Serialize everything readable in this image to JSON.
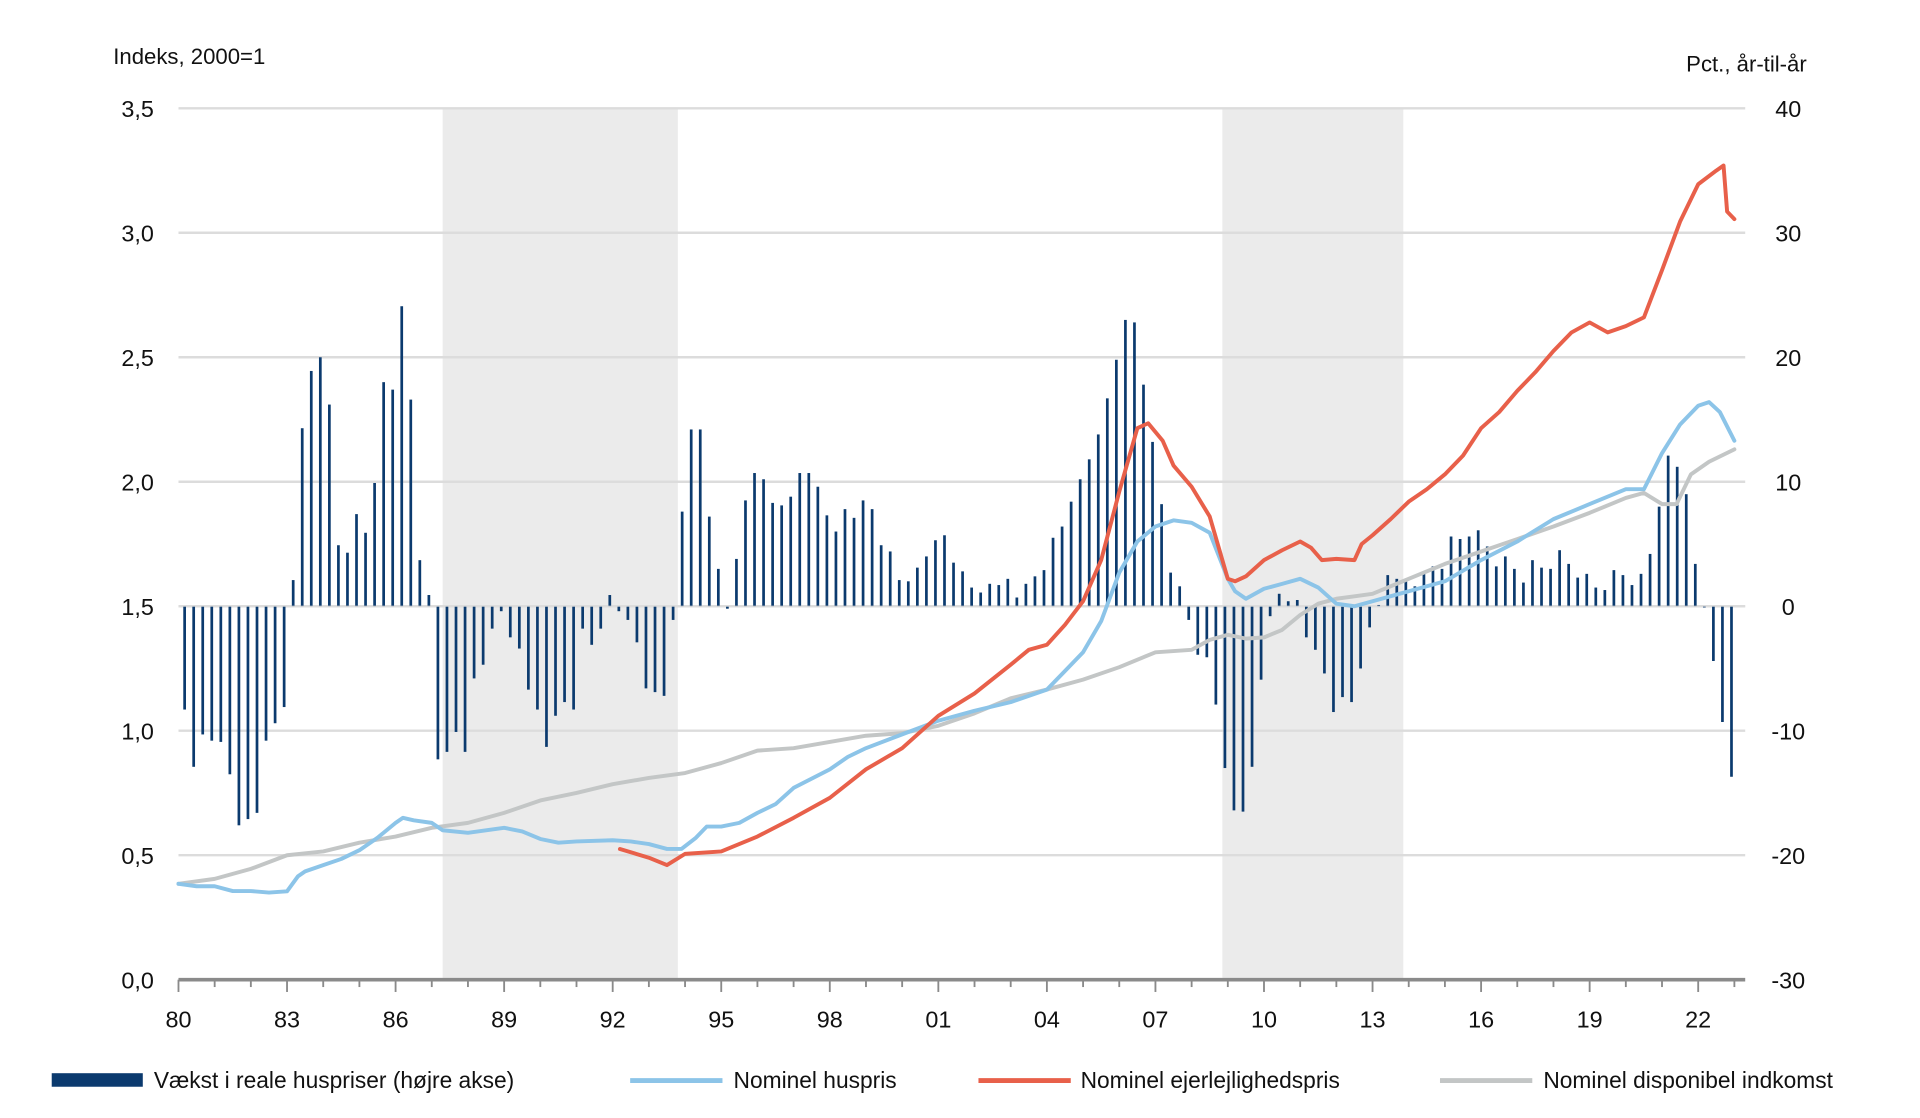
{
  "chart_data": {
    "type": "bar+line",
    "left_axis": {
      "label": "Indeks, 2000=1",
      "ylim": [
        0,
        3.5
      ],
      "ticks": [
        "0,0",
        "0,5",
        "1,0",
        "1,5",
        "2,0",
        "2,5",
        "3,0",
        "3,5"
      ],
      "tick_values": [
        0,
        0.5,
        1,
        1.5,
        2,
        2.5,
        3,
        3.5
      ]
    },
    "right_axis": {
      "label": "Pct., år-til-år",
      "ylim": [
        -30,
        40
      ],
      "ticks": [
        "-30",
        "-20",
        "-10",
        "0",
        "10",
        "20",
        "30",
        "40"
      ],
      "tick_values": [
        -30,
        -20,
        -10,
        0,
        10,
        20,
        30,
        40
      ]
    },
    "x_axis": {
      "xlim": [
        1980,
        2023.3
      ],
      "tick_labels": [
        "80",
        "83",
        "86",
        "89",
        "92",
        "95",
        "98",
        "01",
        "04",
        "07",
        "10",
        "13",
        "16",
        "19",
        "22"
      ],
      "tick_years": [
        1980,
        1983,
        1986,
        1989,
        1992,
        1995,
        1998,
        2001,
        2004,
        2007,
        2010,
        2013,
        2016,
        2019,
        2022
      ]
    },
    "shaded_periods": [
      [
        1987.3,
        1993.8
      ],
      [
        2008.85,
        2013.85
      ]
    ],
    "grid": true,
    "legend": {
      "placement": "bottom",
      "entries": [
        "Vækst i reale huspriser (højre akse)",
        "Nominel huspris",
        "Nominel ejerlejlighedspris",
        "Nominel disponibel indkomst"
      ]
    },
    "bars": {
      "name": "Vækst i reale huspriser (højre akse)",
      "axis": "right",
      "start": "1980Q1",
      "frequency": "quarterly",
      "color": "#0b3a6e",
      "values": [
        -8.3,
        -12.9,
        -10.3,
        -10.8,
        -10.9,
        -13.5,
        -17.6,
        -17.1,
        -16.6,
        -10.8,
        -9.4,
        -8.1,
        2.1,
        14.3,
        18.9,
        20.0,
        16.2,
        4.9,
        4.3,
        7.4,
        5.9,
        9.9,
        18.0,
        17.4,
        24.1,
        16.6,
        3.7,
        0.9,
        -12.3,
        -11.7,
        -10.1,
        -11.7,
        -5.8,
        -4.7,
        -1.8,
        -0.4,
        -2.5,
        -3.4,
        -6.7,
        -8.3,
        -11.3,
        -8.8,
        -7.7,
        -8.3,
        -1.8,
        -3.1,
        -1.8,
        0.9,
        -0.4,
        -1.1,
        -2.9,
        -6.6,
        -6.9,
        -7.2,
        -1.1,
        7.6,
        14.2,
        14.2,
        7.2,
        3.0,
        -0.2,
        3.8,
        8.5,
        10.7,
        10.2,
        8.3,
        8.1,
        8.8,
        10.7,
        10.7,
        9.6,
        7.3,
        6.0,
        7.8,
        7.1,
        8.5,
        7.8,
        4.9,
        4.4,
        2.1,
        2.0,
        3.1,
        4.0,
        5.3,
        5.7,
        3.5,
        2.8,
        1.5,
        1.1,
        1.8,
        1.7,
        2.2,
        0.7,
        1.8,
        2.4,
        2.9,
        5.5,
        6.4,
        8.4,
        10.2,
        11.8,
        13.8,
        16.7,
        19.8,
        23.0,
        22.8,
        17.8,
        13.2,
        8.2,
        2.7,
        1.6,
        -1.1,
        -3.9,
        -4.1,
        -7.9,
        -13.0,
        -16.4,
        -16.5,
        -12.9,
        -5.9,
        -0.8,
        1.0,
        0.4,
        0.5,
        -2.5,
        -3.5,
        -5.4,
        -8.5,
        -7.3,
        -7.7,
        -5.0,
        -1.7,
        0.1,
        2.5,
        2.2,
        2.1,
        1.6,
        2.7,
        3.2,
        3.0,
        5.6,
        5.4,
        5.6,
        6.1,
        4.8,
        3.2,
        4.0,
        3.0,
        1.9,
        3.7,
        3.1,
        3.0,
        4.5,
        3.4,
        2.3,
        2.6,
        1.5,
        1.3,
        2.9,
        2.5,
        1.7,
        2.6,
        4.2,
        8.0,
        12.1,
        11.2,
        9.0,
        3.4,
        -0.1,
        -4.4,
        -9.3,
        -13.7
      ]
    },
    "series": [
      {
        "name": "Nominel huspris",
        "axis": "left",
        "color": "#8cc4e8",
        "x": [
          1980,
          1980.5,
          1981,
          1981.5,
          1982,
          1982.5,
          1983,
          1983.3,
          1983.5,
          1984,
          1984.5,
          1985,
          1985.5,
          1986,
          1986.2,
          1986.5,
          1987,
          1987.3,
          1988,
          1989,
          1989.5,
          1990,
          1990.5,
          1991,
          1992,
          1992.5,
          1993,
          1993.5,
          1993.9,
          1994.3,
          1994.6,
          1995,
          1995.5,
          1996,
          1996.5,
          1997,
          1998,
          1998.5,
          1999,
          2000,
          2001,
          2002,
          2003,
          2004,
          2004.5,
          2005,
          2005.5,
          2006,
          2006.5,
          2007,
          2007.5,
          2008,
          2008.5,
          2009,
          2009.2,
          2009.5,
          2010,
          2010.5,
          2011,
          2011.5,
          2012,
          2012.5,
          2013,
          2014,
          2015,
          2016,
          2017,
          2018,
          2019,
          2020,
          2020.5,
          2021,
          2021.5,
          2022,
          2022.3,
          2022.6,
          2023
        ],
        "y": [
          0.385,
          0.375,
          0.375,
          0.356,
          0.356,
          0.35,
          0.355,
          0.415,
          0.435,
          0.46,
          0.485,
          0.52,
          0.57,
          0.63,
          0.65,
          0.64,
          0.63,
          0.6,
          0.59,
          0.61,
          0.595,
          0.565,
          0.55,
          0.555,
          0.56,
          0.555,
          0.545,
          0.525,
          0.525,
          0.57,
          0.615,
          0.615,
          0.63,
          0.67,
          0.705,
          0.77,
          0.845,
          0.895,
          0.93,
          0.985,
          1.04,
          1.08,
          1.115,
          1.165,
          1.24,
          1.315,
          1.44,
          1.635,
          1.76,
          1.82,
          1.845,
          1.835,
          1.795,
          1.61,
          1.56,
          1.53,
          1.57,
          1.59,
          1.61,
          1.575,
          1.51,
          1.5,
          1.52,
          1.56,
          1.6,
          1.685,
          1.76,
          1.85,
          1.91,
          1.97,
          1.97,
          2.115,
          2.23,
          2.305,
          2.32,
          2.28,
          2.165
        ]
      },
      {
        "name": "Nominel ejerlejlighedspris",
        "axis": "left",
        "color": "#e8604a",
        "x": [
          1992.2,
          1993,
          1993.5,
          1994,
          1995,
          1996,
          1997,
          1998,
          1999,
          2000,
          2001,
          2002,
          2003,
          2003.5,
          2004,
          2004.5,
          2005,
          2005.5,
          2006,
          2006.5,
          2006.8,
          2007.2,
          2007.5,
          2008,
          2008.5,
          2009,
          2009.2,
          2009.5,
          2010,
          2010.5,
          2011,
          2011.3,
          2011.6,
          2012,
          2012.5,
          2012.7,
          2013,
          2013.5,
          2014,
          2014.5,
          2015,
          2015.5,
          2016,
          2016.5,
          2017,
          2017.5,
          2018,
          2018.5,
          2019,
          2019.5,
          2020,
          2020.5,
          2021,
          2021.5,
          2022,
          2022.5,
          2022.7,
          2022.8,
          2023
        ],
        "y": [
          0.525,
          0.49,
          0.46,
          0.505,
          0.515,
          0.575,
          0.65,
          0.73,
          0.845,
          0.93,
          1.06,
          1.15,
          1.265,
          1.325,
          1.345,
          1.425,
          1.52,
          1.685,
          1.96,
          2.215,
          2.235,
          2.165,
          2.065,
          1.98,
          1.86,
          1.61,
          1.6,
          1.62,
          1.685,
          1.725,
          1.76,
          1.735,
          1.685,
          1.69,
          1.685,
          1.75,
          1.785,
          1.85,
          1.92,
          1.97,
          2.03,
          2.105,
          2.215,
          2.28,
          2.365,
          2.44,
          2.525,
          2.6,
          2.64,
          2.6,
          2.625,
          2.66,
          2.85,
          3.045,
          3.195,
          3.25,
          3.27,
          3.085,
          3.055
        ]
      },
      {
        "name": "Nominel disponibel indkomst",
        "axis": "left",
        "color": "#c3c6c6",
        "x": [
          1980,
          1981,
          1982,
          1983,
          1984,
          1985,
          1986,
          1987,
          1988,
          1989,
          1990,
          1991,
          1992,
          1993,
          1994,
          1995,
          1996,
          1997,
          1998,
          1999,
          2000,
          2001,
          2002,
          2003,
          2004,
          2005,
          2006,
          2007,
          2008,
          2008.5,
          2009,
          2009.5,
          2010,
          2010.5,
          2011,
          2011.5,
          2012,
          2012.5,
          2013,
          2014,
          2015,
          2016,
          2017,
          2018,
          2019,
          2020,
          2020.5,
          2021,
          2021.4,
          2021.8,
          2022.3,
          2023
        ],
        "y": [
          0.385,
          0.405,
          0.445,
          0.5,
          0.515,
          0.55,
          0.575,
          0.61,
          0.63,
          0.67,
          0.72,
          0.75,
          0.785,
          0.81,
          0.83,
          0.87,
          0.92,
          0.93,
          0.955,
          0.98,
          0.99,
          1.02,
          1.07,
          1.13,
          1.165,
          1.205,
          1.255,
          1.315,
          1.325,
          1.365,
          1.385,
          1.37,
          1.375,
          1.405,
          1.465,
          1.51,
          1.53,
          1.54,
          1.55,
          1.61,
          1.67,
          1.72,
          1.77,
          1.82,
          1.875,
          1.935,
          1.955,
          1.91,
          1.91,
          2.03,
          2.08,
          2.13
        ]
      }
    ]
  }
}
